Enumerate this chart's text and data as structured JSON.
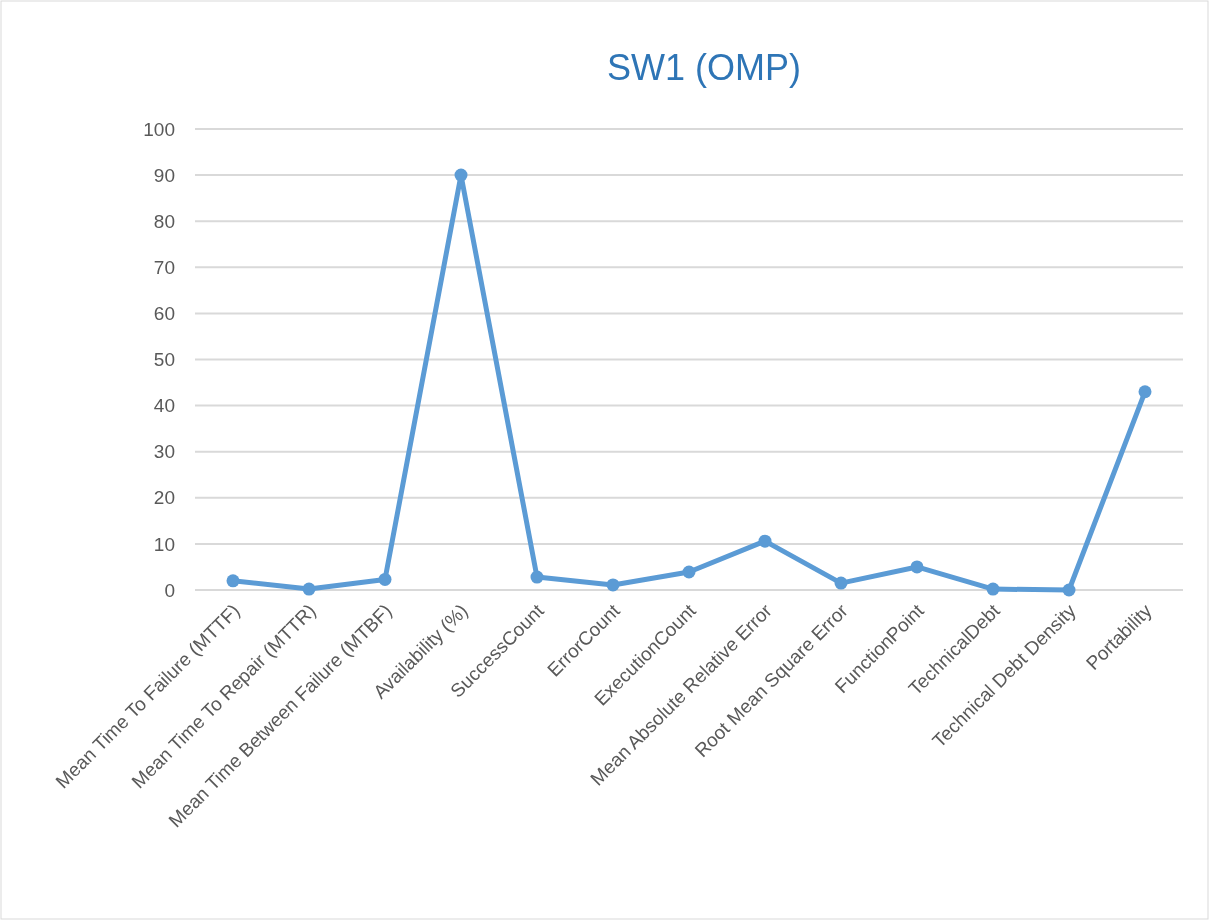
{
  "chart_data": {
    "type": "line",
    "title": "SW1 (OMP)",
    "categories": [
      "Mean Time To Failure (MTTF)",
      "Mean Time To Repair (MTTR)",
      "Mean Time Between Failure (MTBF)",
      "Availability (%)",
      "SuccessCount",
      "ErrorCount",
      "ExecutionCount",
      "Mean Absolute Relative Error",
      "Root Mean Square Error",
      "FunctionPoint",
      "TechnicalDebt",
      "Technical Debt Density",
      "Portability"
    ],
    "series": [
      {
        "color": "#5b9bd5",
        "values": [
          2.0,
          0.2,
          2.3,
          90,
          2.8,
          1.1,
          3.9,
          10.6,
          1.5,
          5.0,
          0.2,
          0,
          43
        ]
      }
    ],
    "ylim": [
      0,
      100
    ],
    "yticks": [
      0,
      10,
      20,
      30,
      40,
      50,
      60,
      70,
      80,
      90,
      100
    ],
    "grid": "y",
    "marker": "circle",
    "line_style": "solid"
  }
}
